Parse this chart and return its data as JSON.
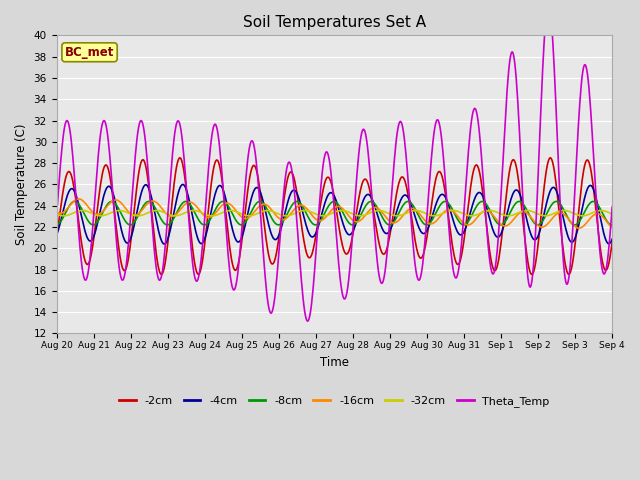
{
  "title": "Soil Temperatures Set A",
  "xlabel": "Time",
  "ylabel": "Soil Temperature (C)",
  "ylim": [
    12,
    40
  ],
  "yticks": [
    12,
    14,
    16,
    18,
    20,
    22,
    24,
    26,
    28,
    30,
    32,
    34,
    36,
    38,
    40
  ],
  "xtick_labels": [
    "Aug 20",
    "Aug 21",
    "Aug 22",
    "Aug 23",
    "Aug 24",
    "Aug 25",
    "Aug 26",
    "Aug 27",
    "Aug 28",
    "Aug 29",
    "Aug 30",
    "Aug 31",
    "Sep 1",
    "Sep 2",
    "Sep 3",
    "Sep 4"
  ],
  "colors": {
    "-2cm": "#cc0000",
    "-4cm": "#000099",
    "-8cm": "#009900",
    "-16cm": "#ff8800",
    "-32cm": "#cccc00",
    "Theta_Temp": "#cc00cc"
  },
  "bg_color": "#e8e8e8",
  "grid_color": "#ffffff",
  "annotation": "BC_met",
  "annotation_bg": "#ffff99",
  "annotation_border": "#888800"
}
